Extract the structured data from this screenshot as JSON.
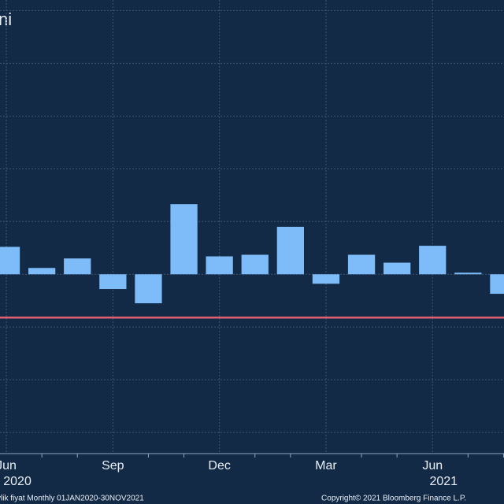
{
  "chart_data": {
    "type": "bar",
    "title": "ni",
    "categories": [
      "Jun",
      null,
      null,
      "Sep",
      null,
      null,
      "Dec",
      null,
      null,
      "Mar",
      null,
      null,
      "Jun",
      null,
      null
    ],
    "year_labels": [
      "2020",
      null,
      null,
      null,
      null,
      null,
      null,
      null,
      null,
      null,
      null,
      null,
      "2021",
      null,
      null
    ],
    "values": [
      0.52,
      0.12,
      0.3,
      -0.28,
      -0.55,
      1.33,
      0.34,
      0.37,
      0.9,
      -0.18,
      0.37,
      0.22,
      0.54,
      0.03,
      -0.37
    ],
    "color": "#7dbcf8",
    "reference_line": {
      "value": -0.82,
      "color": "#e0606e"
    },
    "ylim": [
      -3.4,
      5.2
    ],
    "yticks": [
      -3,
      -2,
      -1,
      0,
      1,
      2,
      3,
      4,
      5
    ],
    "ytick_labels": false,
    "grid": true,
    "footer_left": "ylik fiyat  Monthly 01JAN2020-30NOV2021",
    "footer_right": "Copyright© 2021 Bloomberg Finance L.P."
  }
}
